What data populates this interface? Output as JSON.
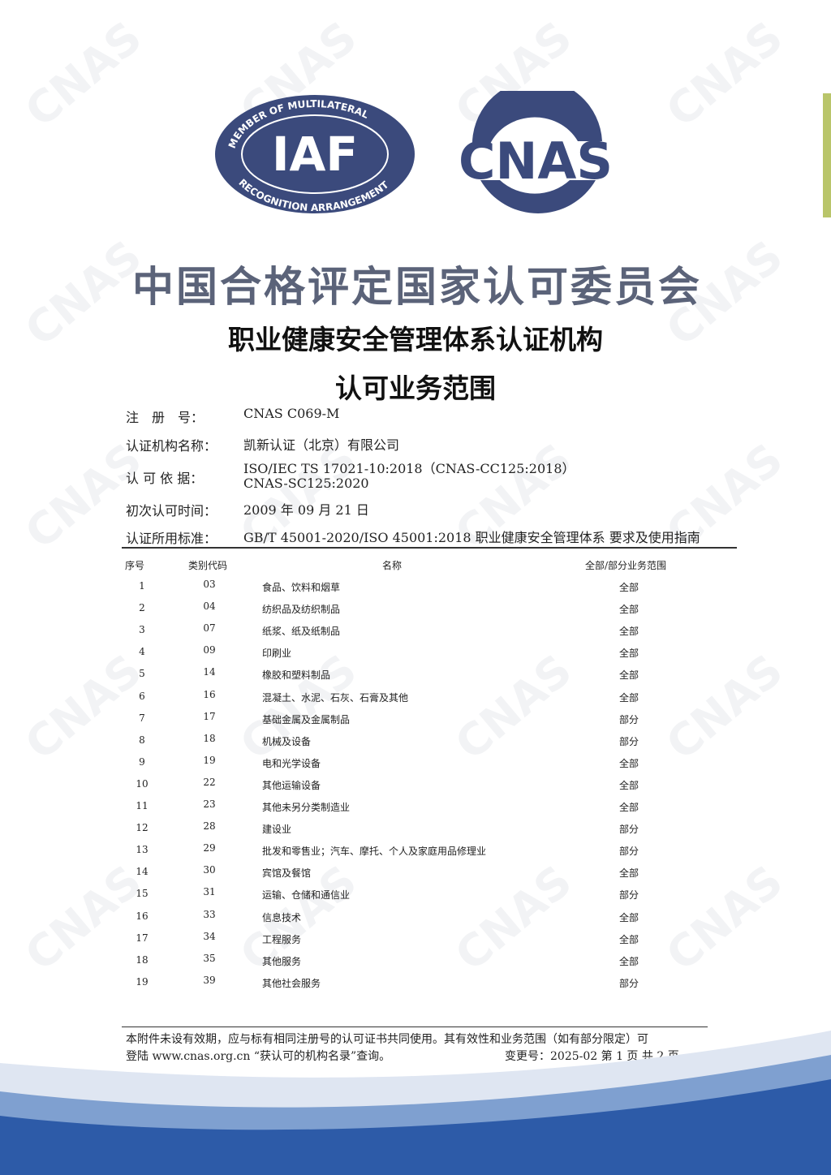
{
  "logos": {
    "iaf": {
      "text": "IAF",
      "ring_text": "MEMBER OF MULTILATERAL RECOGNITION ARRANGEMENT",
      "color": "#3b4a7c"
    },
    "cnas": {
      "text": "CNAS",
      "color": "#3b4a7c"
    }
  },
  "watermark": "CNAS",
  "title": "中国合格评定国家认可委员会",
  "subtitle1": "职业健康安全管理体系认证机构",
  "subtitle2": "认可业务范围",
  "info": [
    {
      "label": "注　册　号：",
      "value": "CNAS C069-M"
    },
    {
      "label": "认证机构名称：",
      "value": "凯新认证（北京）有限公司"
    },
    {
      "label": "认 可  依 据：",
      "value": "ISO/IEC TS 17021-10:2018（CNAS-CC125:2018）",
      "value2": "CNAS-SC125:2020"
    },
    {
      "label": "初次认可时间：",
      "value": "2009 年 09 月 21 日"
    },
    {
      "label": "认证所用标准：",
      "value": "GB/T 45001-2020/ISO 45001:2018  职业健康安全管理体系  要求及使用指南"
    }
  ],
  "table": {
    "headers": [
      "序号",
      "类别代码",
      "名称",
      "全部/部分业务范围"
    ],
    "rows": [
      [
        "1",
        "03",
        "食品、饮料和烟草",
        "全部"
      ],
      [
        "2",
        "04",
        "纺织品及纺织制品",
        "全部"
      ],
      [
        "3",
        "07",
        "纸浆、纸及纸制品",
        "全部"
      ],
      [
        "4",
        "09",
        "印刷业",
        "全部"
      ],
      [
        "5",
        "14",
        "橡胶和塑料制品",
        "全部"
      ],
      [
        "6",
        "16",
        "混凝土、水泥、石灰、石膏及其他",
        "全部"
      ],
      [
        "7",
        "17",
        "基础金属及金属制品",
        "部分"
      ],
      [
        "8",
        "18",
        "机械及设备",
        "部分"
      ],
      [
        "9",
        "19",
        "电和光学设备",
        "全部"
      ],
      [
        "10",
        "22",
        "其他运输设备",
        "全部"
      ],
      [
        "11",
        "23",
        "其他未另分类制造业",
        "全部"
      ],
      [
        "12",
        "28",
        "建设业",
        "部分"
      ],
      [
        "13",
        "29",
        "批发和零售业；汽车、摩托、个人及家庭用品修理业",
        "部分"
      ],
      [
        "14",
        "30",
        "宾馆及餐馆",
        "全部"
      ],
      [
        "15",
        "31",
        "运输、仓储和通信业",
        "部分"
      ],
      [
        "16",
        "33",
        "信息技术",
        "全部"
      ],
      [
        "17",
        "34",
        "工程服务",
        "全部"
      ],
      [
        "18",
        "35",
        "其他服务",
        "全部"
      ],
      [
        "19",
        "39",
        "其他社会服务",
        "部分"
      ]
    ]
  },
  "footer": {
    "line1": "本附件未设有效期，应与标有相同注册号的认可证书共同使用。其有效性和业务范围（如有部分限定）可",
    "line2": "登陆 www.cnas.org.cn “获认可的机构名录”查询。",
    "change": "变更号：2025-02  第 1 页  共 2 页"
  }
}
